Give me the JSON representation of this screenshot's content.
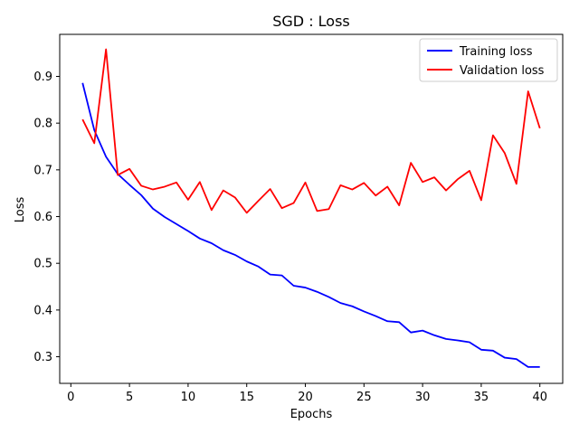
{
  "chart_data": {
    "type": "line",
    "title": "SGD : Loss",
    "xlabel": "Epochs",
    "ylabel": "Loss",
    "xlim": [
      -0.95,
      41.95
    ],
    "ylim": [
      0.243,
      0.99
    ],
    "xticks": [
      0,
      5,
      10,
      15,
      20,
      25,
      30,
      35,
      40
    ],
    "yticks": [
      0.3,
      0.4,
      0.5,
      0.6,
      0.7,
      0.8,
      0.9
    ],
    "grid": false,
    "legend_position": "top-right",
    "x": [
      1,
      2,
      3,
      4,
      5,
      6,
      7,
      8,
      9,
      10,
      11,
      12,
      13,
      14,
      15,
      16,
      17,
      18,
      19,
      20,
      21,
      22,
      23,
      24,
      25,
      26,
      27,
      28,
      29,
      30,
      31,
      32,
      33,
      34,
      35,
      36,
      37,
      38,
      39,
      40
    ],
    "series": [
      {
        "name": "Training loss",
        "color": "#0000ff",
        "values": [
          0.886,
          0.785,
          0.728,
          0.691,
          0.668,
          0.646,
          0.617,
          0.599,
          0.584,
          0.569,
          0.553,
          0.543,
          0.528,
          0.518,
          0.504,
          0.493,
          0.476,
          0.474,
          0.452,
          0.448,
          0.439,
          0.428,
          0.415,
          0.408,
          0.397,
          0.387,
          0.376,
          0.374,
          0.352,
          0.356,
          0.346,
          0.338,
          0.335,
          0.331,
          0.315,
          0.313,
          0.298,
          0.295,
          0.278,
          0.278
        ]
      },
      {
        "name": "Validation loss",
        "color": "#ff0000",
        "values": [
          0.808,
          0.757,
          0.958,
          0.689,
          0.702,
          0.666,
          0.658,
          0.664,
          0.673,
          0.636,
          0.674,
          0.614,
          0.656,
          0.641,
          0.608,
          0.634,
          0.659,
          0.618,
          0.629,
          0.673,
          0.612,
          0.616,
          0.667,
          0.658,
          0.672,
          0.645,
          0.664,
          0.624,
          0.715,
          0.674,
          0.684,
          0.656,
          0.68,
          0.698,
          0.635,
          0.774,
          0.736,
          0.67,
          0.868,
          0.789
        ]
      }
    ]
  }
}
